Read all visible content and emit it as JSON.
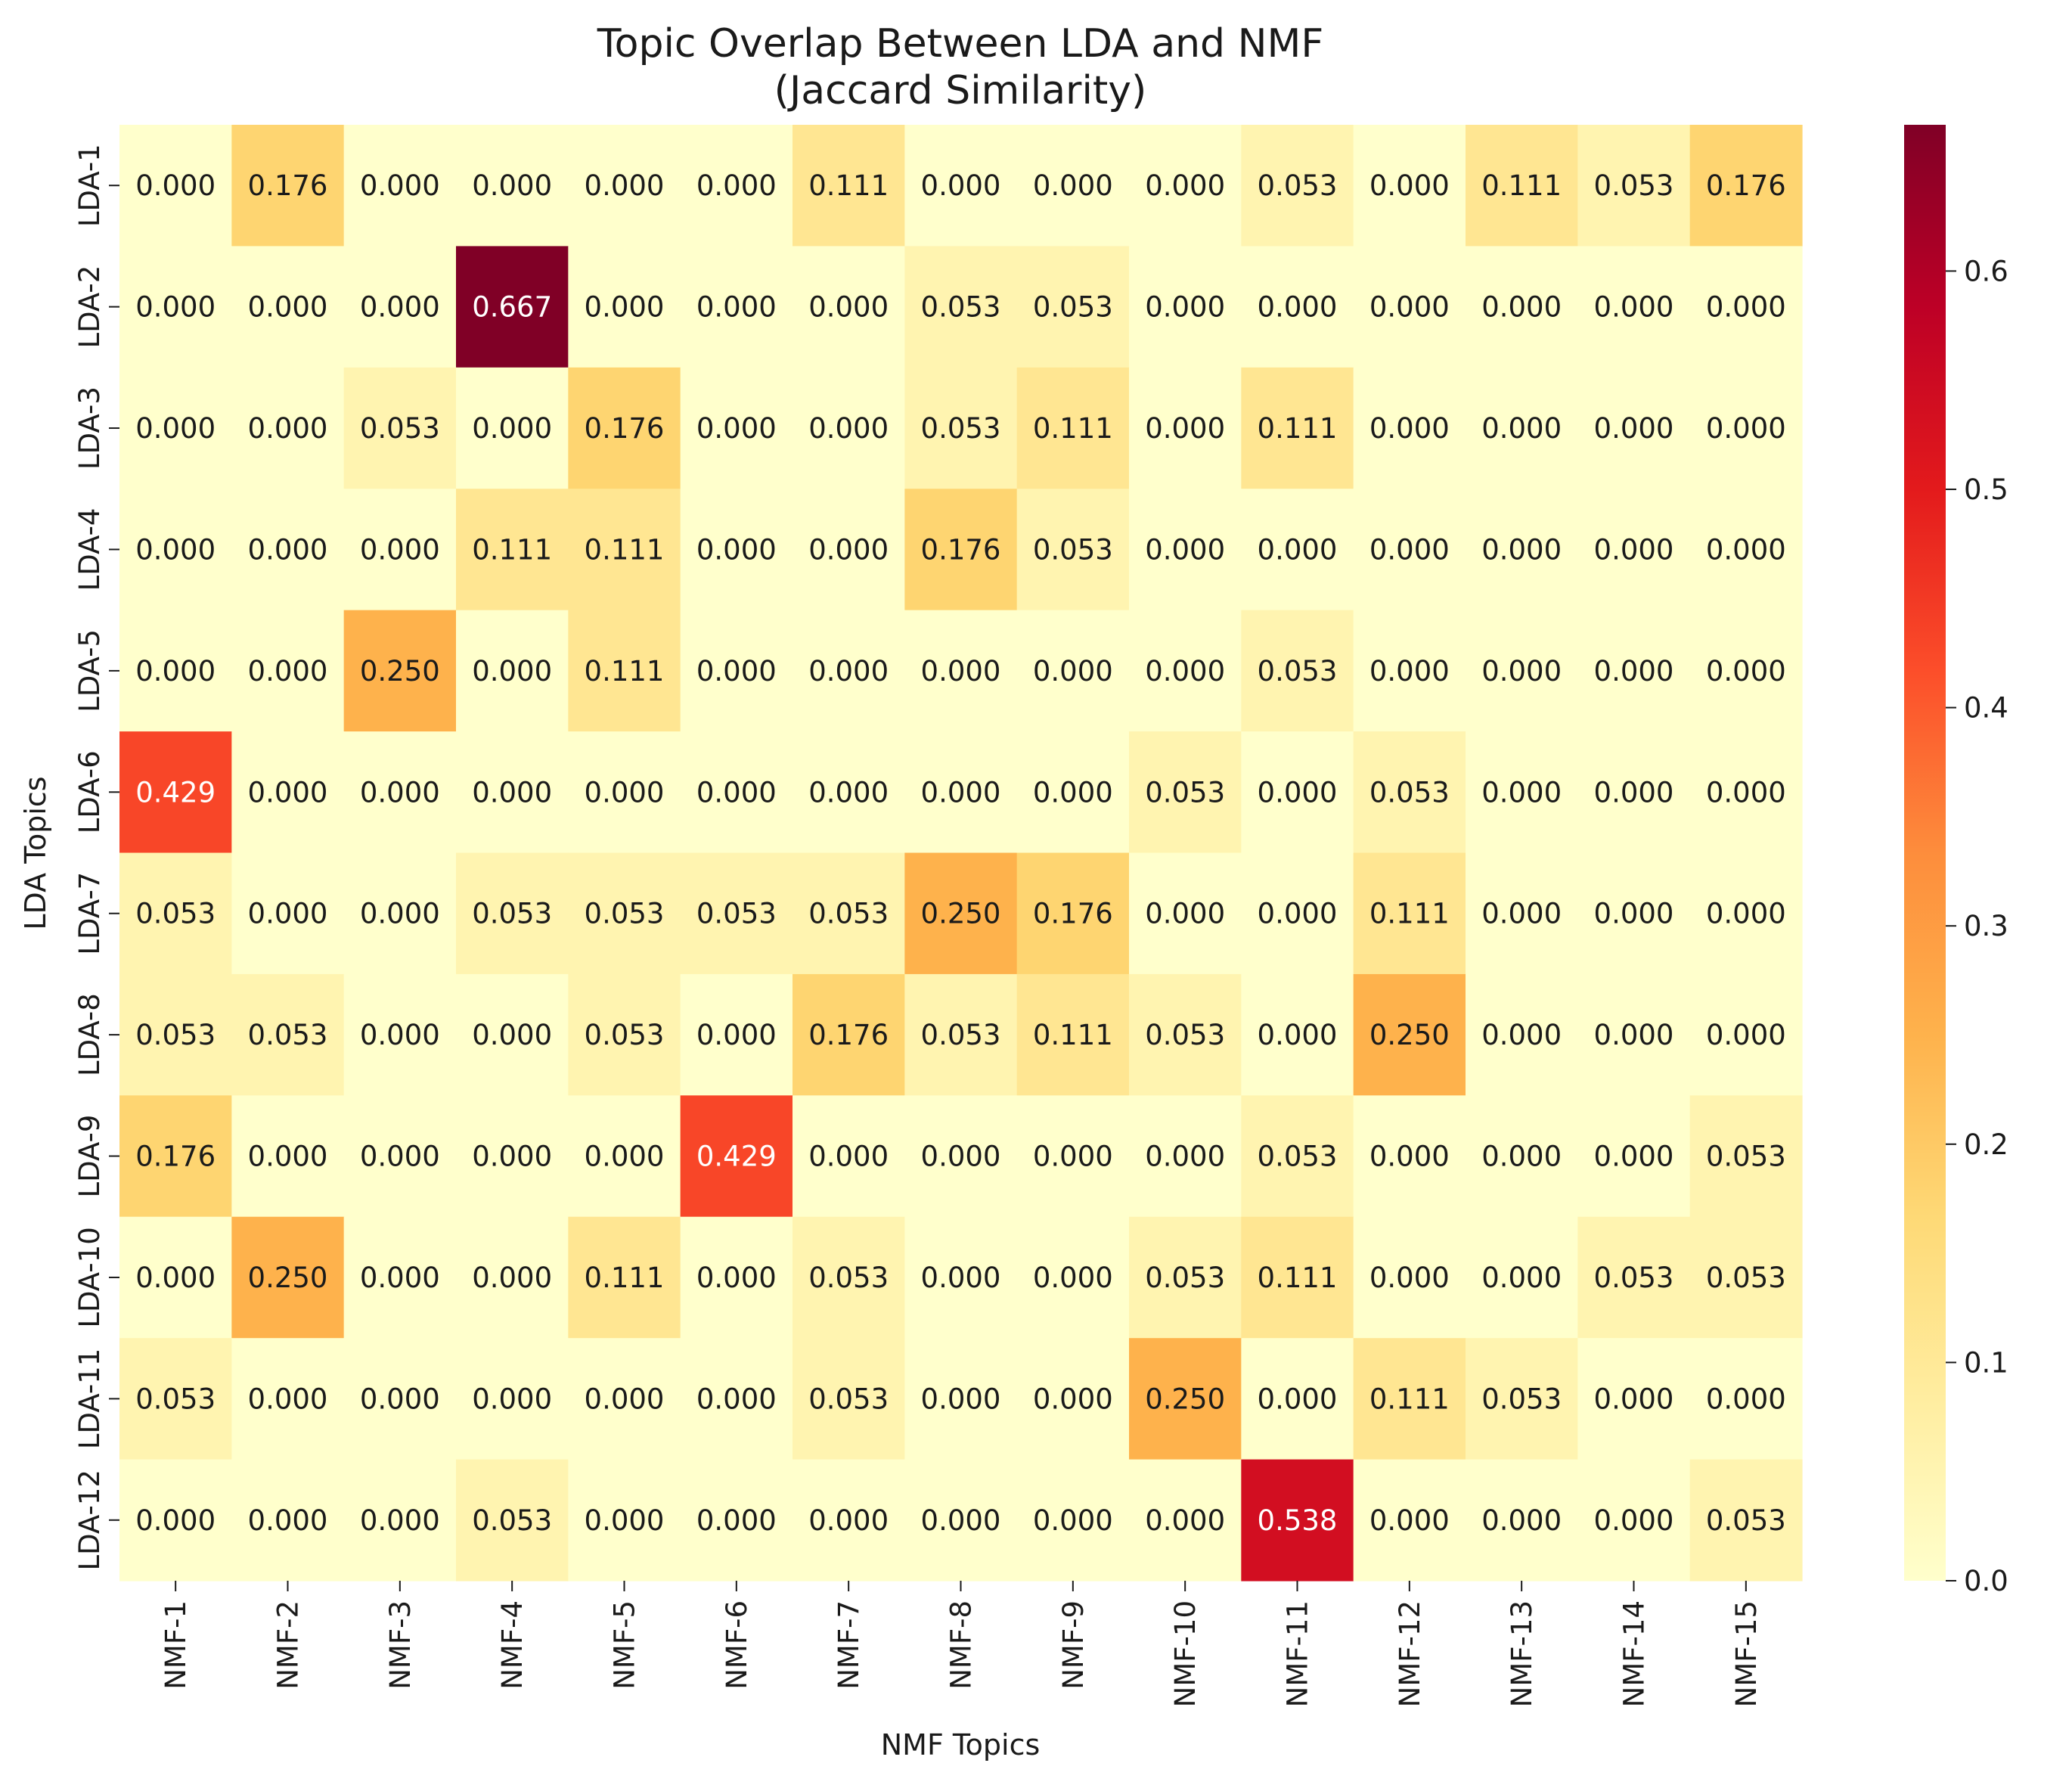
{
  "chart_data": {
    "type": "heatmap",
    "title": "Topic Overlap Between LDA and NMF",
    "subtitle": "(Jaccard Similarity)",
    "xlabel": "NMF Topics",
    "ylabel": "LDA Topics",
    "x_categories": [
      "NMF-1",
      "NMF-2",
      "NMF-3",
      "NMF-4",
      "NMF-5",
      "NMF-6",
      "NMF-7",
      "NMF-8",
      "NMF-9",
      "NMF-10",
      "NMF-11",
      "NMF-12",
      "NMF-13",
      "NMF-14",
      "NMF-15"
    ],
    "y_categories": [
      "LDA-1",
      "LDA-2",
      "LDA-3",
      "LDA-4",
      "LDA-5",
      "LDA-6",
      "LDA-7",
      "LDA-8",
      "LDA-9",
      "LDA-10",
      "LDA-11",
      "LDA-12"
    ],
    "values": [
      [
        0.0,
        0.176,
        0.0,
        0.0,
        0.0,
        0.0,
        0.111,
        0.0,
        0.0,
        0.0,
        0.053,
        0.0,
        0.111,
        0.053,
        0.176
      ],
      [
        0.0,
        0.0,
        0.0,
        0.667,
        0.0,
        0.0,
        0.0,
        0.053,
        0.053,
        0.0,
        0.0,
        0.0,
        0.0,
        0.0,
        0.0
      ],
      [
        0.0,
        0.0,
        0.053,
        0.0,
        0.176,
        0.0,
        0.0,
        0.053,
        0.111,
        0.0,
        0.111,
        0.0,
        0.0,
        0.0,
        0.0
      ],
      [
        0.0,
        0.0,
        0.0,
        0.111,
        0.111,
        0.0,
        0.0,
        0.176,
        0.053,
        0.0,
        0.0,
        0.0,
        0.0,
        0.0,
        0.0
      ],
      [
        0.0,
        0.0,
        0.25,
        0.0,
        0.111,
        0.0,
        0.0,
        0.0,
        0.0,
        0.0,
        0.053,
        0.0,
        0.0,
        0.0,
        0.0
      ],
      [
        0.429,
        0.0,
        0.0,
        0.0,
        0.0,
        0.0,
        0.0,
        0.0,
        0.0,
        0.053,
        0.0,
        0.053,
        0.0,
        0.0,
        0.0
      ],
      [
        0.053,
        0.0,
        0.0,
        0.053,
        0.053,
        0.053,
        0.053,
        0.25,
        0.176,
        0.0,
        0.0,
        0.111,
        0.0,
        0.0,
        0.0
      ],
      [
        0.053,
        0.053,
        0.0,
        0.0,
        0.053,
        0.0,
        0.176,
        0.053,
        0.111,
        0.053,
        0.0,
        0.25,
        0.0,
        0.0,
        0.0
      ],
      [
        0.176,
        0.0,
        0.0,
        0.0,
        0.0,
        0.429,
        0.0,
        0.0,
        0.0,
        0.0,
        0.053,
        0.0,
        0.0,
        0.0,
        0.053
      ],
      [
        0.0,
        0.25,
        0.0,
        0.0,
        0.111,
        0.0,
        0.053,
        0.0,
        0.0,
        0.053,
        0.111,
        0.0,
        0.0,
        0.053,
        0.053
      ],
      [
        0.053,
        0.0,
        0.0,
        0.0,
        0.0,
        0.0,
        0.053,
        0.0,
        0.0,
        0.25,
        0.0,
        0.111,
        0.053,
        0.0,
        0.0
      ],
      [
        0.0,
        0.0,
        0.0,
        0.053,
        0.0,
        0.0,
        0.0,
        0.0,
        0.0,
        0.0,
        0.538,
        0.0,
        0.0,
        0.0,
        0.053
      ]
    ],
    "value_format": "0.000",
    "colormap": "YlOrRd",
    "colormap_stops": [
      "#ffffcc",
      "#ffeda0",
      "#fed976",
      "#feb24c",
      "#fd8d3c",
      "#fc4e2a",
      "#e31a1c",
      "#bd0026",
      "#800026"
    ],
    "vmin": 0.0,
    "vmax": 0.667,
    "colorbar_ticks": [
      0.0,
      0.1,
      0.2,
      0.3,
      0.4,
      0.5,
      0.6
    ],
    "colorbar_tick_labels": [
      "0.0",
      "0.1",
      "0.2",
      "0.3",
      "0.4",
      "0.5",
      "0.6"
    ],
    "grid": false,
    "legend": "colorbar-right"
  }
}
